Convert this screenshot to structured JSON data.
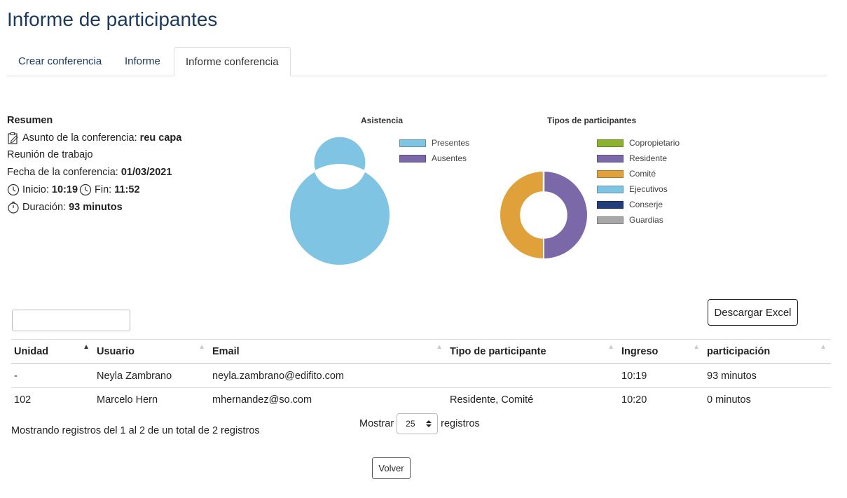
{
  "page": {
    "title": "Informe de participantes"
  },
  "tabs": [
    {
      "label": "Crear conferencia",
      "active": false
    },
    {
      "label": "Informe",
      "active": false
    },
    {
      "label": "Informe conferencia",
      "active": true
    }
  ],
  "summary": {
    "heading": "Resumen",
    "subject_label": "Asunto de la conferencia:",
    "subject_value": "reu capa",
    "meeting_type": "Reunión de trabajo",
    "date_label": "Fecha de la conferencia:",
    "date_value": "01/03/2021",
    "start_label": "Inicio:",
    "start_value": "10:19",
    "end_label": "Fin:",
    "end_value": "11:52",
    "duration_label": "Duración:",
    "duration_value": "93 minutos",
    "icons": [
      "edit-icon",
      "clock-icon",
      "clock-icon",
      "stopwatch-icon"
    ]
  },
  "chart_data": [
    {
      "type": "pie",
      "title": "Asistencia",
      "categories": [
        "Presentes",
        "Ausentes"
      ],
      "values": [
        100,
        0
      ],
      "colors": [
        "#7fc4e3",
        "#7b68a8"
      ],
      "legend": "top-right",
      "style": "donut"
    },
    {
      "type": "pie",
      "title": "Tipos de participantes",
      "categories": [
        "Copropietario",
        "Residente",
        "Comité",
        "Ejecutivos",
        "Conserje",
        "Guardias"
      ],
      "values": [
        0,
        1,
        1,
        0,
        0,
        0
      ],
      "colors": [
        "#8bb32e",
        "#7b68a8",
        "#e0a03a",
        "#7fc4e3",
        "#203e7a",
        "#a7a7a7"
      ],
      "legend": "top-right",
      "style": "donut"
    }
  ],
  "toolbar": {
    "search_value": "",
    "excel_label": "Descargar Excel"
  },
  "table": {
    "columns": [
      "Unidad",
      "Usuario",
      "Email",
      "Tipo de participante",
      "Ingreso",
      "participación"
    ],
    "sorted_column": "Unidad",
    "rows": [
      [
        "-",
        "Neyla Zambrano",
        "neyla.zambrano@edifito.com",
        "",
        "10:19",
        "93 minutos"
      ],
      [
        "102",
        "Marcelo Hern",
        "mhernandez@so.com",
        "Residente, Comité",
        "10:20",
        "0 minutos"
      ]
    ]
  },
  "pagination": {
    "info": "Mostrando registros del 1 al 2 de un total de 2 registros",
    "show_label": "Mostrar",
    "page_size": "25",
    "records_label": "registros"
  },
  "footer": {
    "back_label": "Volver"
  }
}
